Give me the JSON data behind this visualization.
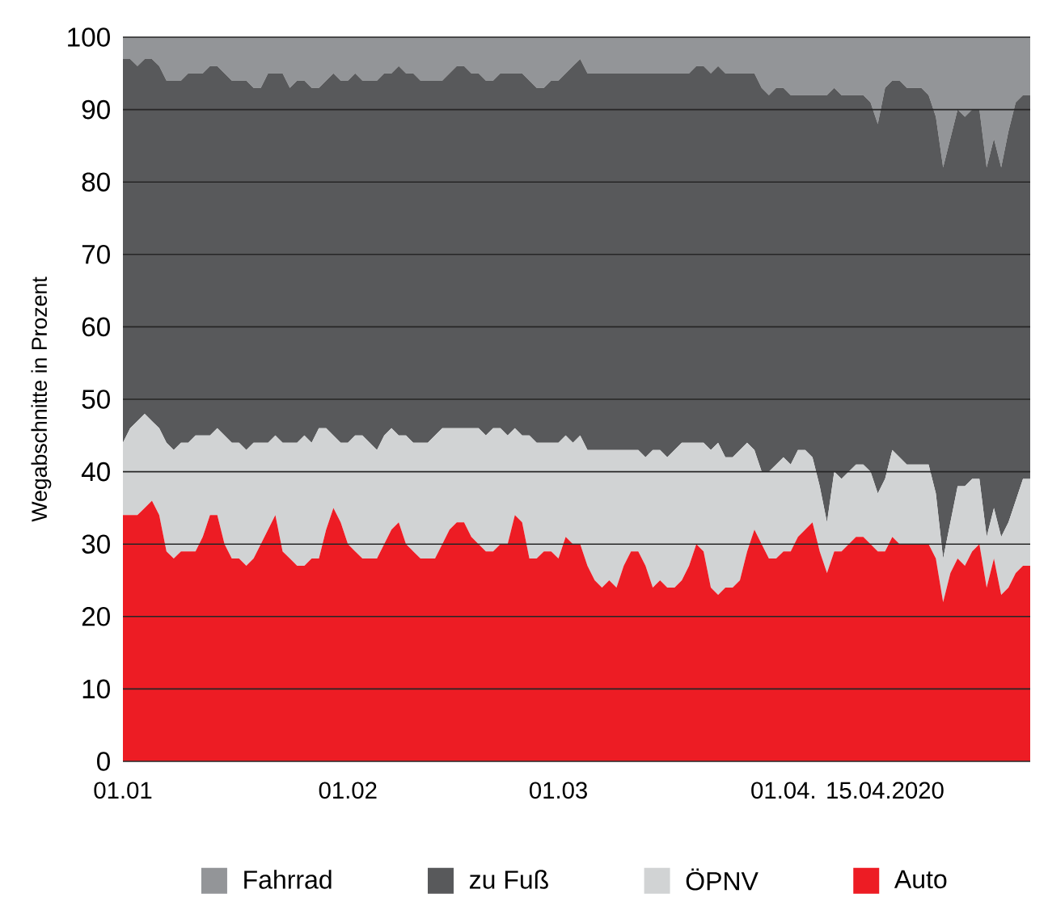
{
  "chart_data": {
    "type": "area",
    "stacked": true,
    "ylabel": "Wegabschnitte in Prozent",
    "x": [
      "2020-01-01",
      "2020-01-02",
      "2020-01-03",
      "2020-01-04",
      "2020-01-05",
      "2020-01-06",
      "2020-01-07",
      "2020-01-08",
      "2020-01-09",
      "2020-01-10",
      "2020-01-11",
      "2020-01-12",
      "2020-01-13",
      "2020-01-14",
      "2020-01-15",
      "2020-01-16",
      "2020-01-17",
      "2020-01-18",
      "2020-01-19",
      "2020-01-20",
      "2020-01-21",
      "2020-01-22",
      "2020-01-23",
      "2020-01-24",
      "2020-01-25",
      "2020-01-26",
      "2020-01-27",
      "2020-01-28",
      "2020-01-29",
      "2020-01-30",
      "2020-01-31",
      "2020-02-01",
      "2020-02-02",
      "2020-02-03",
      "2020-02-04",
      "2020-02-05",
      "2020-02-06",
      "2020-02-07",
      "2020-02-08",
      "2020-02-09",
      "2020-02-10",
      "2020-02-11",
      "2020-02-12",
      "2020-02-13",
      "2020-02-14",
      "2020-02-15",
      "2020-02-16",
      "2020-02-17",
      "2020-02-18",
      "2020-02-19",
      "2020-02-20",
      "2020-02-21",
      "2020-02-22",
      "2020-02-23",
      "2020-02-24",
      "2020-02-25",
      "2020-02-26",
      "2020-02-27",
      "2020-02-28",
      "2020-02-29",
      "2020-03-01",
      "2020-03-02",
      "2020-03-03",
      "2020-03-04",
      "2020-03-05",
      "2020-03-06",
      "2020-03-07",
      "2020-03-08",
      "2020-03-09",
      "2020-03-10",
      "2020-03-11",
      "2020-03-12",
      "2020-03-13",
      "2020-03-14",
      "2020-03-15",
      "2020-03-16",
      "2020-03-17",
      "2020-03-18",
      "2020-03-19",
      "2020-03-20",
      "2020-03-21",
      "2020-03-22",
      "2020-03-23",
      "2020-03-24",
      "2020-03-25",
      "2020-03-26",
      "2020-03-27",
      "2020-03-28",
      "2020-03-29",
      "2020-03-30",
      "2020-03-31",
      "2020-04-01",
      "2020-04-02",
      "2020-04-03",
      "2020-04-04",
      "2020-04-05",
      "2020-04-06",
      "2020-04-07",
      "2020-04-08",
      "2020-04-09",
      "2020-04-10",
      "2020-04-11",
      "2020-04-12",
      "2020-04-13",
      "2020-04-14",
      "2020-04-15",
      "2020-04-16",
      "2020-04-17",
      "2020-04-18",
      "2020-04-19",
      "2020-04-20",
      "2020-04-21",
      "2020-04-22",
      "2020-04-23",
      "2020-04-24",
      "2020-04-25",
      "2020-04-26",
      "2020-04-27",
      "2020-04-28",
      "2020-04-29",
      "2020-04-30",
      "2020-05-01",
      "2020-05-02",
      "2020-05-03",
      "2020-05-04",
      "2020-05-05"
    ],
    "series": [
      {
        "name": "Auto",
        "color": "#ed1c24",
        "values": [
          34,
          34,
          34,
          35,
          36,
          34,
          29,
          28,
          29,
          29,
          29,
          31,
          34,
          34,
          30,
          28,
          28,
          27,
          28,
          30,
          32,
          34,
          29,
          28,
          27,
          27,
          28,
          28,
          32,
          35,
          33,
          30,
          29,
          28,
          28,
          28,
          30,
          32,
          33,
          30,
          29,
          28,
          28,
          28,
          30,
          32,
          33,
          33,
          31,
          30,
          29,
          29,
          30,
          30,
          34,
          33,
          28,
          28,
          29,
          29,
          28,
          31,
          30,
          30,
          27,
          25,
          24,
          25,
          24,
          27,
          29,
          29,
          27,
          24,
          25,
          24,
          24,
          25,
          27,
          30,
          29,
          24,
          23,
          24,
          24,
          25,
          29,
          32,
          30,
          28,
          28,
          29,
          29,
          31,
          32,
          33,
          29,
          26,
          29,
          29,
          30,
          31,
          31,
          30,
          29,
          29,
          31,
          30,
          30,
          30,
          30,
          30,
          28,
          22,
          26,
          28,
          27,
          29,
          30,
          24,
          28,
          23,
          24,
          26,
          27,
          27
        ]
      },
      {
        "name": "ÖPNV",
        "color": "#d1d3d4",
        "values": [
          10,
          12,
          13,
          13,
          11,
          12,
          15,
          15,
          15,
          15,
          16,
          14,
          11,
          12,
          15,
          16,
          16,
          16,
          16,
          14,
          12,
          11,
          15,
          16,
          17,
          18,
          16,
          18,
          14,
          10,
          11,
          14,
          16,
          17,
          16,
          15,
          15,
          14,
          12,
          15,
          15,
          16,
          16,
          17,
          16,
          14,
          13,
          13,
          15,
          16,
          16,
          17,
          16,
          15,
          12,
          12,
          17,
          16,
          15,
          15,
          16,
          14,
          14,
          15,
          16,
          18,
          19,
          18,
          19,
          16,
          14,
          14,
          15,
          19,
          18,
          18,
          19,
          19,
          17,
          14,
          15,
          19,
          21,
          18,
          18,
          18,
          15,
          11,
          10,
          12,
          13,
          13,
          12,
          12,
          11,
          9,
          9,
          7,
          11,
          10,
          10,
          10,
          10,
          10,
          8,
          10,
          12,
          12,
          11,
          11,
          11,
          11,
          9,
          6,
          7,
          10,
          11,
          10,
          9,
          7,
          7,
          8,
          9,
          10,
          12,
          12
        ]
      },
      {
        "name": "zu Fuß",
        "color": "#58595b",
        "values": [
          53,
          51,
          49,
          49,
          50,
          50,
          50,
          51,
          50,
          51,
          50,
          50,
          51,
          50,
          50,
          50,
          50,
          51,
          49,
          49,
          51,
          50,
          51,
          49,
          50,
          49,
          49,
          47,
          48,
          50,
          50,
          50,
          50,
          49,
          50,
          51,
          50,
          49,
          51,
          50,
          51,
          50,
          50,
          49,
          48,
          49,
          50,
          50,
          49,
          49,
          49,
          48,
          49,
          50,
          49,
          50,
          49,
          49,
          49,
          50,
          50,
          50,
          52,
          52,
          52,
          52,
          52,
          52,
          52,
          52,
          52,
          52,
          53,
          52,
          52,
          53,
          52,
          51,
          51,
          52,
          52,
          52,
          52,
          53,
          53,
          52,
          51,
          52,
          53,
          52,
          52,
          51,
          51,
          49,
          49,
          50,
          54,
          59,
          53,
          53,
          52,
          51,
          51,
          51,
          51,
          54,
          51,
          52,
          52,
          52,
          52,
          51,
          52,
          54,
          53,
          52,
          51,
          51,
          51,
          51,
          51,
          51,
          54,
          55,
          53,
          53
        ]
      },
      {
        "name": "Fahrrad",
        "color": "#939598",
        "values": [
          3,
          3,
          4,
          3,
          3,
          4,
          6,
          6,
          6,
          5,
          5,
          5,
          4,
          4,
          5,
          6,
          6,
          6,
          7,
          7,
          5,
          5,
          5,
          7,
          6,
          6,
          7,
          7,
          6,
          5,
          6,
          6,
          5,
          6,
          6,
          6,
          5,
          5,
          4,
          5,
          5,
          6,
          6,
          6,
          6,
          5,
          4,
          4,
          5,
          5,
          6,
          6,
          5,
          5,
          5,
          5,
          6,
          7,
          7,
          6,
          6,
          5,
          4,
          3,
          5,
          5,
          5,
          5,
          5,
          5,
          5,
          5,
          5,
          5,
          5,
          5,
          5,
          5,
          5,
          4,
          4,
          5,
          4,
          5,
          5,
          5,
          5,
          5,
          7,
          8,
          7,
          7,
          8,
          8,
          8,
          8,
          8,
          8,
          7,
          8,
          8,
          8,
          8,
          9,
          12,
          7,
          6,
          6,
          7,
          7,
          7,
          8,
          11,
          18,
          14,
          10,
          11,
          10,
          10,
          18,
          14,
          18,
          13,
          9,
          8,
          8
        ]
      }
    ],
    "xlim": [
      "2020-01-01",
      "2020-05-05"
    ],
    "xticks": [
      {
        "value": "2020-01-01",
        "label": "01.01"
      },
      {
        "value": "2020-02-01",
        "label": "01.02"
      },
      {
        "value": "2020-03-01",
        "label": "01.03"
      },
      {
        "value": "2020-04-01",
        "label": "01.04."
      },
      {
        "value": "2020-04-15",
        "label": "15.04.2020"
      }
    ],
    "ylim": [
      0,
      100
    ],
    "yticks": [
      0,
      10,
      20,
      30,
      40,
      50,
      60,
      70,
      80,
      90,
      100
    ],
    "grid": "y",
    "legend": "bottom"
  }
}
